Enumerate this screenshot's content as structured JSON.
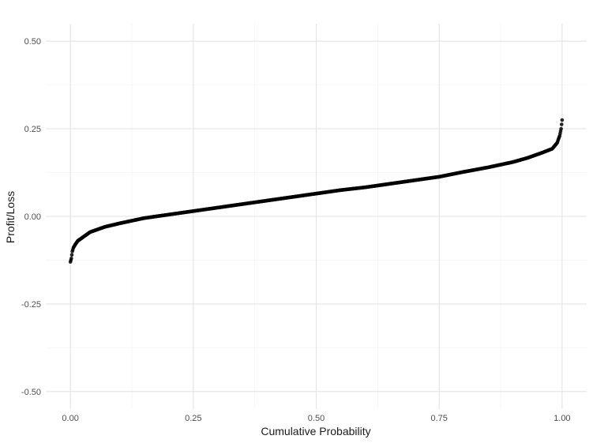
{
  "chart_data": {
    "type": "scatter",
    "title": "",
    "xlabel": "Cumulative Probability",
    "ylabel": "Profit/Loss",
    "xlim": [
      -0.05,
      1.05
    ],
    "ylim": [
      -0.55,
      0.55
    ],
    "x_ticks": [
      0.0,
      0.25,
      0.5,
      0.75,
      1.0
    ],
    "x_tick_labels": [
      "0.00",
      "0.25",
      "0.50",
      "0.75",
      "1.00"
    ],
    "y_ticks": [
      -0.5,
      -0.25,
      0.0,
      0.25,
      0.5
    ],
    "y_tick_labels": [
      "-0.50",
      "-0.25",
      "0.00",
      "0.25",
      "0.50"
    ],
    "grid": true,
    "theme": "minimal",
    "point_color": "#000000",
    "curve_points": [
      [
        0.0,
        -0.13
      ],
      [
        0.002,
        -0.12
      ],
      [
        0.004,
        -0.1
      ],
      [
        0.006,
        -0.09
      ],
      [
        0.01,
        -0.08
      ],
      [
        0.015,
        -0.07
      ],
      [
        0.02,
        -0.065
      ],
      [
        0.03,
        -0.055
      ],
      [
        0.04,
        -0.045
      ],
      [
        0.05,
        -0.04
      ],
      [
        0.07,
        -0.03
      ],
      [
        0.1,
        -0.02
      ],
      [
        0.15,
        -0.005
      ],
      [
        0.2,
        0.005
      ],
      [
        0.25,
        0.015
      ],
      [
        0.3,
        0.025
      ],
      [
        0.35,
        0.035
      ],
      [
        0.4,
        0.045
      ],
      [
        0.45,
        0.055
      ],
      [
        0.5,
        0.065
      ],
      [
        0.55,
        0.075
      ],
      [
        0.6,
        0.083
      ],
      [
        0.65,
        0.093
      ],
      [
        0.7,
        0.103
      ],
      [
        0.75,
        0.113
      ],
      [
        0.8,
        0.127
      ],
      [
        0.85,
        0.14
      ],
      [
        0.9,
        0.155
      ],
      [
        0.93,
        0.167
      ],
      [
        0.96,
        0.182
      ],
      [
        0.98,
        0.193
      ],
      [
        0.99,
        0.21
      ],
      [
        0.995,
        0.23
      ],
      [
        0.998,
        0.25
      ],
      [
        1.0,
        0.275
      ]
    ],
    "n_points": 1000
  }
}
